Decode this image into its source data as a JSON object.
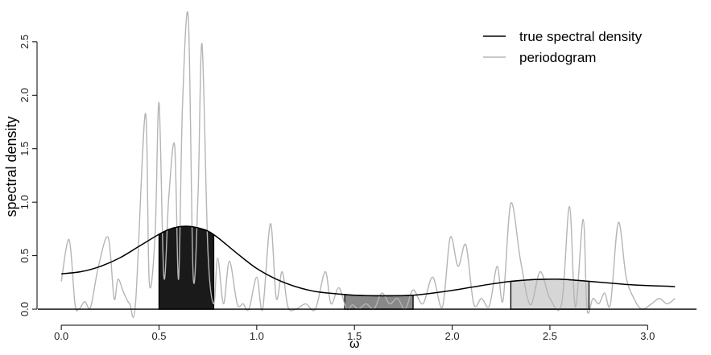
{
  "chart_data": {
    "type": "line",
    "xlabel": "ω",
    "ylabel": "spectral density",
    "xlim": [
      -0.12,
      3.25
    ],
    "ylim": [
      -0.09,
      2.77
    ],
    "x_ticks": [
      0.0,
      0.5,
      1.0,
      1.5,
      2.0,
      2.5,
      3.0
    ],
    "x_tick_labels": [
      "0.0",
      "0.5",
      "1.0",
      "1.5",
      "2.0",
      "2.5",
      "3.0"
    ],
    "y_ticks": [
      0.0,
      0.5,
      1.0,
      1.5,
      2.0,
      2.5
    ],
    "y_tick_labels": [
      "0.0",
      "0.5",
      "1.0",
      "1.5",
      "2.0",
      "2.5"
    ],
    "grid": false,
    "legend": {
      "placement": "top-right",
      "entries": [
        {
          "label": "true spectral density",
          "color": "#000000"
        },
        {
          "label": "periodogram",
          "color": "#b5b5b5"
        }
      ]
    },
    "series": [
      {
        "name": "true spectral density",
        "color": "#000000",
        "x": [
          0.0,
          0.1,
          0.2,
          0.3,
          0.4,
          0.5,
          0.55,
          0.6,
          0.65,
          0.7,
          0.75,
          0.8,
          0.9,
          1.0,
          1.1,
          1.2,
          1.3,
          1.4,
          1.5,
          1.6,
          1.7,
          1.8,
          1.9,
          2.0,
          2.1,
          2.2,
          2.3,
          2.4,
          2.5,
          2.55,
          2.6,
          2.7,
          2.8,
          2.9,
          3.0,
          3.1,
          3.14
        ],
        "y": [
          0.33,
          0.35,
          0.4,
          0.48,
          0.59,
          0.7,
          0.745,
          0.77,
          0.775,
          0.76,
          0.73,
          0.67,
          0.52,
          0.38,
          0.28,
          0.21,
          0.165,
          0.145,
          0.13,
          0.125,
          0.125,
          0.13,
          0.15,
          0.175,
          0.205,
          0.235,
          0.26,
          0.275,
          0.28,
          0.28,
          0.275,
          0.26,
          0.245,
          0.23,
          0.22,
          0.215,
          0.21
        ]
      },
      {
        "name": "periodogram",
        "color": "#b5b5b5",
        "x": [
          0.0,
          0.04,
          0.07,
          0.09,
          0.12,
          0.15,
          0.19,
          0.24,
          0.27,
          0.29,
          0.32,
          0.35,
          0.38,
          0.43,
          0.45,
          0.48,
          0.5,
          0.525,
          0.55,
          0.58,
          0.6,
          0.62,
          0.65,
          0.675,
          0.7,
          0.72,
          0.75,
          0.78,
          0.8,
          0.83,
          0.86,
          0.9,
          0.93,
          0.96,
          1.0,
          1.03,
          1.07,
          1.1,
          1.13,
          1.16,
          1.2,
          1.25,
          1.3,
          1.35,
          1.38,
          1.42,
          1.46,
          1.49,
          1.52,
          1.56,
          1.6,
          1.64,
          1.68,
          1.72,
          1.76,
          1.8,
          1.85,
          1.9,
          1.95,
          1.99,
          2.03,
          2.07,
          2.11,
          2.15,
          2.19,
          2.23,
          2.26,
          2.3,
          2.35,
          2.4,
          2.45,
          2.5,
          2.56,
          2.6,
          2.63,
          2.67,
          2.69,
          2.72,
          2.75,
          2.78,
          2.81,
          2.85,
          2.89,
          2.93,
          2.97,
          3.02,
          3.06,
          3.1,
          3.14
        ],
        "y": [
          0.26,
          0.65,
          0.05,
          0.0,
          0.07,
          0.02,
          0.4,
          0.67,
          0.1,
          0.28,
          0.15,
          0.05,
          0.06,
          1.83,
          0.25,
          0.7,
          1.93,
          0.3,
          1.05,
          1.53,
          0.28,
          1.9,
          2.72,
          0.3,
          1.1,
          2.48,
          0.55,
          0.05,
          0.48,
          0.05,
          0.45,
          0.05,
          0.05,
          0.0,
          0.3,
          0.0,
          0.8,
          0.1,
          0.35,
          0.02,
          0.0,
          0.05,
          0.0,
          0.35,
          0.05,
          0.2,
          0.0,
          0.04,
          0.0,
          0.05,
          0.0,
          0.15,
          0.05,
          0.1,
          0.0,
          0.18,
          0.05,
          0.3,
          0.02,
          0.67,
          0.4,
          0.6,
          0.05,
          0.1,
          0.03,
          0.4,
          0.08,
          0.99,
          0.45,
          0.04,
          0.35,
          0.1,
          0.05,
          0.96,
          0.02,
          0.84,
          0.0,
          0.1,
          0.05,
          0.15,
          0.05,
          0.81,
          0.3,
          0.1,
          0.0,
          0.05,
          0.1,
          0.05,
          0.1
        ]
      }
    ],
    "shaded_bands": [
      {
        "from": 0.5,
        "to": 0.78,
        "color": "#1a1a1a"
      },
      {
        "from": 1.45,
        "to": 1.8,
        "color": "#888888"
      },
      {
        "from": 2.3,
        "to": 2.7,
        "color": "#d6d6d6"
      }
    ]
  }
}
